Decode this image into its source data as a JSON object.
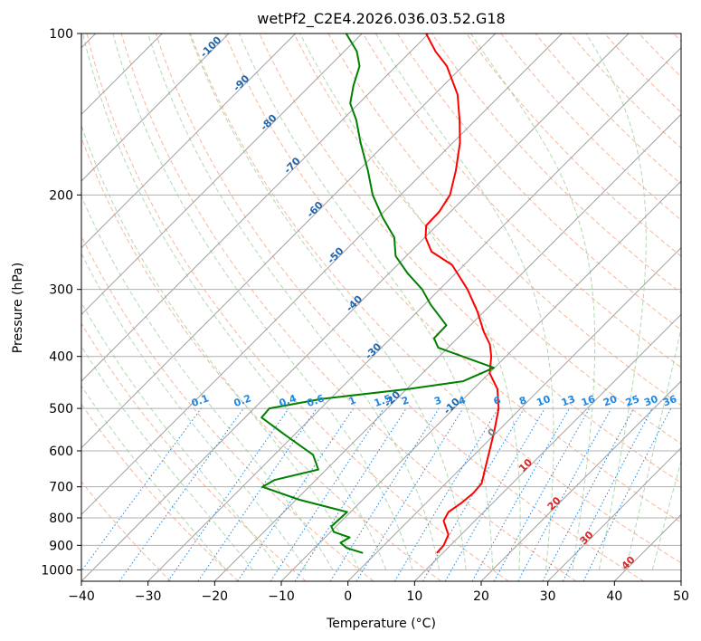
{
  "chart_data": {
    "type": "line",
    "title": "wetPf2_C2E4.2026.036.03.52.G18",
    "xlabel": "Temperature (°C)",
    "ylabel": "Pressure (hPa)",
    "xlim": [
      -40,
      50
    ],
    "ylim": [
      1050,
      100
    ],
    "y_scale": "log",
    "skew": true,
    "x_ticks": [
      -40,
      -30,
      -20,
      -10,
      0,
      10,
      20,
      30,
      40,
      50
    ],
    "y_ticks": [
      100,
      200,
      300,
      400,
      500,
      600,
      700,
      800,
      900,
      1000
    ],
    "grid": true,
    "colors": {
      "temperature": "#ff0000",
      "dewpoint": "#008000",
      "isotherm": "#a0a0a0",
      "dry_adiabat": "#f4a582",
      "moist_adiabat": "#8fc98f",
      "mixing_ratio": "#1e88e5",
      "isotherm_label": "#2166ac",
      "moist_label": "#d62728"
    },
    "series": [
      {
        "points": [
          {
            "p": 930,
            "t": 9.1
          },
          {
            "p": 900,
            "t": 9.0
          },
          {
            "p": 860,
            "t": 8.1
          },
          {
            "p": 840,
            "t": 7.0
          },
          {
            "p": 810,
            "t": 5.3
          },
          {
            "p": 780,
            "t": 4.7
          },
          {
            "p": 750,
            "t": 5.3
          },
          {
            "p": 720,
            "t": 5.6
          },
          {
            "p": 690,
            "t": 5.4
          },
          {
            "p": 650,
            "t": 3.8
          },
          {
            "p": 600,
            "t": 1.7
          },
          {
            "p": 550,
            "t": -0.6
          },
          {
            "p": 500,
            "t": -3.3
          },
          {
            "p": 460,
            "t": -6.4
          },
          {
            "p": 430,
            "t": -9.9
          },
          {
            "p": 400,
            "t": -12.2
          },
          {
            "p": 380,
            "t": -14.2
          },
          {
            "p": 360,
            "t": -17.0
          },
          {
            "p": 330,
            "t": -21.0
          },
          {
            "p": 300,
            "t": -25.8
          },
          {
            "p": 270,
            "t": -31.8
          },
          {
            "p": 255,
            "t": -36.9
          },
          {
            "p": 240,
            "t": -39.9
          },
          {
            "p": 228,
            "t": -41.6
          },
          {
            "p": 215,
            "t": -41.7
          },
          {
            "p": 200,
            "t": -42.6
          },
          {
            "p": 180,
            "t": -45.4
          },
          {
            "p": 160,
            "t": -48.9
          },
          {
            "p": 145,
            "t": -52.4
          },
          {
            "p": 130,
            "t": -56.5
          },
          {
            "p": 115,
            "t": -62.4
          },
          {
            "p": 108,
            "t": -66.3
          },
          {
            "p": 100,
            "t": -70.4
          }
        ]
      },
      {
        "points": [
          {
            "p": 930,
            "t": -2.0
          },
          {
            "p": 910,
            "t": -5.2
          },
          {
            "p": 890,
            "t": -6.9
          },
          {
            "p": 870,
            "t": -6.3
          },
          {
            "p": 850,
            "t": -9.5
          },
          {
            "p": 830,
            "t": -10.7
          },
          {
            "p": 780,
            "t": -10.5
          },
          {
            "p": 740,
            "t": -19.5
          },
          {
            "p": 700,
            "t": -27.0
          },
          {
            "p": 680,
            "t": -26.2
          },
          {
            "p": 650,
            "t": -21.2
          },
          {
            "p": 610,
            "t": -24.2
          },
          {
            "p": 560,
            "t": -31.4
          },
          {
            "p": 520,
            "t": -37.5
          },
          {
            "p": 500,
            "t": -37.7
          },
          {
            "p": 480,
            "t": -31.3
          },
          {
            "p": 460,
            "t": -19.7
          },
          {
            "p": 445,
            "t": -12.7
          },
          {
            "p": 420,
            "t": -10.1
          },
          {
            "p": 400,
            "t": -16.5
          },
          {
            "p": 385,
            "t": -21.5
          },
          {
            "p": 370,
            "t": -23.5
          },
          {
            "p": 350,
            "t": -23.6
          },
          {
            "p": 320,
            "t": -29.1
          },
          {
            "p": 300,
            "t": -32.6
          },
          {
            "p": 280,
            "t": -37.2
          },
          {
            "p": 260,
            "t": -41.6
          },
          {
            "p": 240,
            "t": -44.6
          },
          {
            "p": 220,
            "t": -49.4
          },
          {
            "p": 200,
            "t": -54.2
          },
          {
            "p": 180,
            "t": -58.6
          },
          {
            "p": 160,
            "t": -63.8
          },
          {
            "p": 145,
            "t": -67.9
          },
          {
            "p": 135,
            "t": -71.3
          },
          {
            "p": 125,
            "t": -73.5
          },
          {
            "p": 115,
            "t": -75.5
          },
          {
            "p": 108,
            "t": -78.1
          },
          {
            "p": 100,
            "t": -82.4
          }
        ]
      }
    ],
    "isotherm_labels": [
      -100,
      -90,
      -80,
      -70,
      -60,
      -50,
      -40,
      -30,
      -20,
      -10,
      0,
      10,
      20,
      30,
      40
    ],
    "mixing_ratio_labels": [
      "0.1",
      "0.2",
      "0.4",
      "0.6",
      "1",
      "1.5",
      "2",
      "3",
      "4",
      "6",
      "8",
      "10",
      "13",
      "16",
      "20",
      "25",
      "30",
      "36"
    ]
  }
}
